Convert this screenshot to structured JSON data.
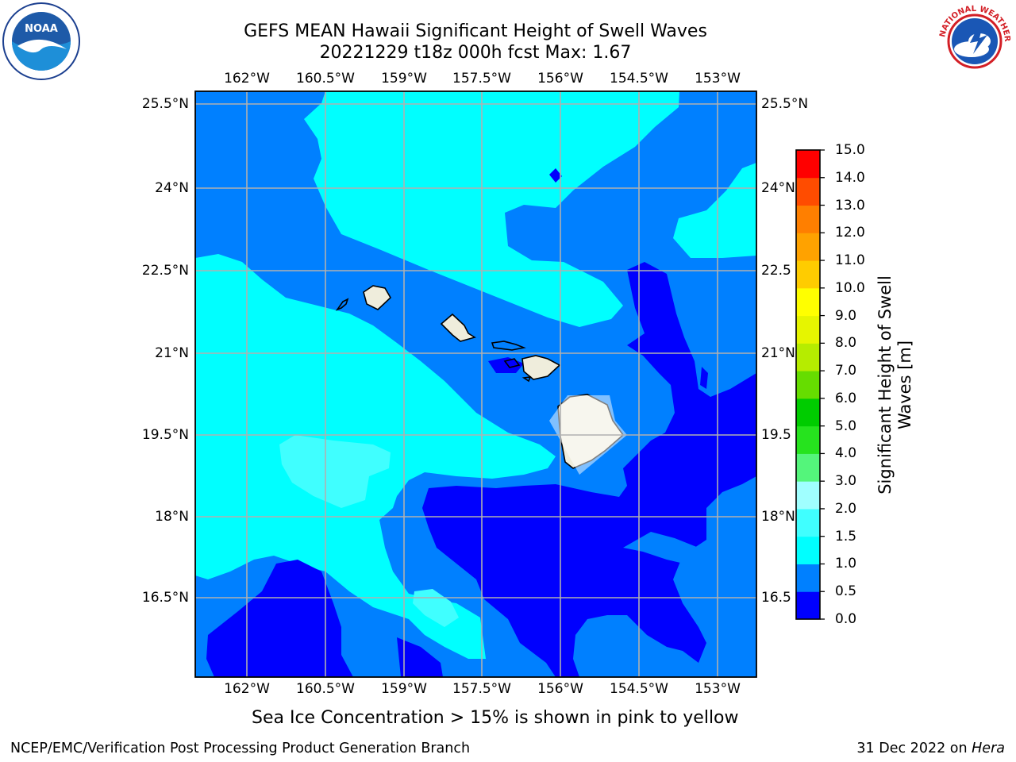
{
  "title": {
    "line1": "GEFS MEAN Hawaii Significant Height of Swell Waves",
    "line2": "20221229 t18z 000h fcst   Max: 1.67"
  },
  "logos": {
    "left": "noaa-logo",
    "right": "nws-logo",
    "nws_text": "NATIONAL WEATHER SERVICE"
  },
  "axes": {
    "lon_labels": [
      "162°W",
      "160.5°W",
      "159°W",
      "157.5°W",
      "156°W",
      "154.5°W",
      "153°W"
    ],
    "lat_labels": [
      "25.5°N",
      "24°N",
      "22.5°N",
      "21°N",
      "19.5°N",
      "18°N",
      "16.5°N"
    ],
    "lat_labels_right": [
      "25.5°N",
      "24°N",
      "22.5",
      "21°N",
      "19.5",
      "18°N",
      "16.5"
    ]
  },
  "colorbar": {
    "title_line1": "Significant Height of Swell",
    "title_line2": "Waves [m]",
    "levels": [
      "0.0",
      "0.5",
      "1.0",
      "1.5",
      "2.0",
      "3.0",
      "4.0",
      "5.0",
      "6.0",
      "7.0",
      "8.0",
      "9.0",
      "10.0",
      "11.0",
      "12.0",
      "13.0",
      "14.0",
      "15.0"
    ],
    "colors": [
      "#0000fe",
      "#0080ff",
      "#00ffff",
      "#40ffff",
      "#a0ffff",
      "#54f57b",
      "#26e31e",
      "#00cc00",
      "#66dd00",
      "#b6ec00",
      "#e6f500",
      "#ffff00",
      "#ffcc00",
      "#ffa200",
      "#ff7f00",
      "#ff4c00",
      "#ff0000"
    ]
  },
  "sea_ice_note": "Sea Ice Concentration > 15% is shown in pink to yellow",
  "footer": {
    "left": "NCEP/EMC/Verification Post Processing Product Generation Branch",
    "right_date": "31 Dec 2022 on ",
    "right_host": "Hera"
  },
  "chart_data": {
    "type": "heatmap",
    "variable": "Significant Height of Swell Waves",
    "units": "m",
    "max": 1.67,
    "region": "Hawaii",
    "lon_range": [
      -162.9,
      -152.7
    ],
    "lat_range": [
      15.2,
      25.8
    ],
    "contour_levels": [
      0.0,
      0.5,
      1.0,
      1.5,
      2.0,
      3.0,
      4.0,
      5.0,
      6.0,
      7.0,
      8.0,
      9.0,
      10.0,
      11.0,
      12.0,
      13.0,
      14.0,
      15.0
    ],
    "grid": true
  }
}
